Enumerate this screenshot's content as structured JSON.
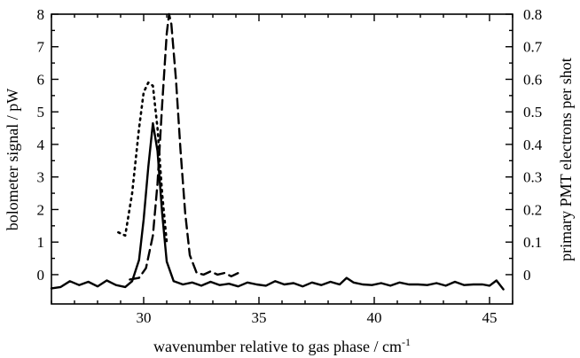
{
  "chart_data": {
    "type": "line",
    "xlabel": "wavenumber relative to gas phase / cm",
    "xlabel_superscript": "-1",
    "ylabel_left": "bolometer signal / pW",
    "ylabel_right": "primary PMT electrons per shot",
    "xlim": [
      26,
      46
    ],
    "ylim_left": [
      -0.9,
      8
    ],
    "ylim_right": [
      -0.09,
      0.8
    ],
    "x_ticks": [
      30,
      35,
      40,
      45
    ],
    "y_ticks_left": [
      0,
      1,
      2,
      3,
      4,
      5,
      6,
      7,
      8
    ],
    "y_ticks_right": [
      0.1,
      0.2,
      0.3,
      0.4,
      0.5,
      0.6,
      0.7,
      0.8
    ],
    "y_right_tick_zero_label": "0",
    "grid": false,
    "legend": "none",
    "series": [
      {
        "style": "solid",
        "axis": "left",
        "x": [
          26.0,
          26.4,
          26.8,
          27.2,
          27.6,
          28.0,
          28.4,
          28.8,
          29.2,
          29.5,
          29.8,
          30.0,
          30.2,
          30.4,
          30.6,
          30.8,
          31.0,
          31.3,
          31.7,
          32.1,
          32.5,
          32.9,
          33.3,
          33.7,
          34.1,
          34.5,
          34.9,
          35.3,
          35.7,
          36.1,
          36.5,
          36.9,
          37.3,
          37.7,
          38.1,
          38.5,
          38.8,
          39.1,
          39.5,
          39.9,
          40.3,
          40.7,
          41.1,
          41.5,
          41.9,
          42.3,
          42.7,
          43.1,
          43.5,
          43.9,
          44.3,
          44.7,
          45.0,
          45.3,
          45.6
        ],
        "y": [
          -0.42,
          -0.38,
          -0.2,
          -0.32,
          -0.22,
          -0.36,
          -0.18,
          -0.32,
          -0.38,
          -0.2,
          0.45,
          1.7,
          3.3,
          4.65,
          3.8,
          1.9,
          0.4,
          -0.2,
          -0.3,
          -0.24,
          -0.34,
          -0.22,
          -0.32,
          -0.28,
          -0.36,
          -0.24,
          -0.3,
          -0.34,
          -0.2,
          -0.3,
          -0.26,
          -0.36,
          -0.24,
          -0.32,
          -0.22,
          -0.3,
          -0.1,
          -0.24,
          -0.3,
          -0.32,
          -0.26,
          -0.34,
          -0.24,
          -0.3,
          -0.3,
          -0.32,
          -0.26,
          -0.34,
          -0.22,
          -0.32,
          -0.3,
          -0.3,
          -0.34,
          -0.18,
          -0.45
        ]
      },
      {
        "style": "dashed",
        "axis": "right",
        "x": [
          29.4,
          29.8,
          30.1,
          30.4,
          30.6,
          30.8,
          31.0,
          31.1,
          31.2,
          31.4,
          31.6,
          31.8,
          32.0,
          32.3,
          32.6,
          32.9,
          33.2,
          33.5,
          33.8,
          34.1
        ],
        "y": [
          -0.015,
          -0.01,
          0.02,
          0.12,
          0.28,
          0.52,
          0.74,
          0.8,
          0.77,
          0.6,
          0.38,
          0.19,
          0.06,
          0.005,
          0.0,
          0.01,
          0.0,
          0.005,
          -0.005,
          0.005
        ]
      },
      {
        "style": "dotted",
        "axis": "right",
        "x": [
          28.9,
          29.2,
          29.5,
          29.8,
          30.0,
          30.2,
          30.4,
          30.6,
          30.8,
          31.0
        ],
        "y": [
          0.13,
          0.12,
          0.25,
          0.45,
          0.56,
          0.59,
          0.58,
          0.45,
          0.25,
          0.1
        ]
      }
    ]
  }
}
